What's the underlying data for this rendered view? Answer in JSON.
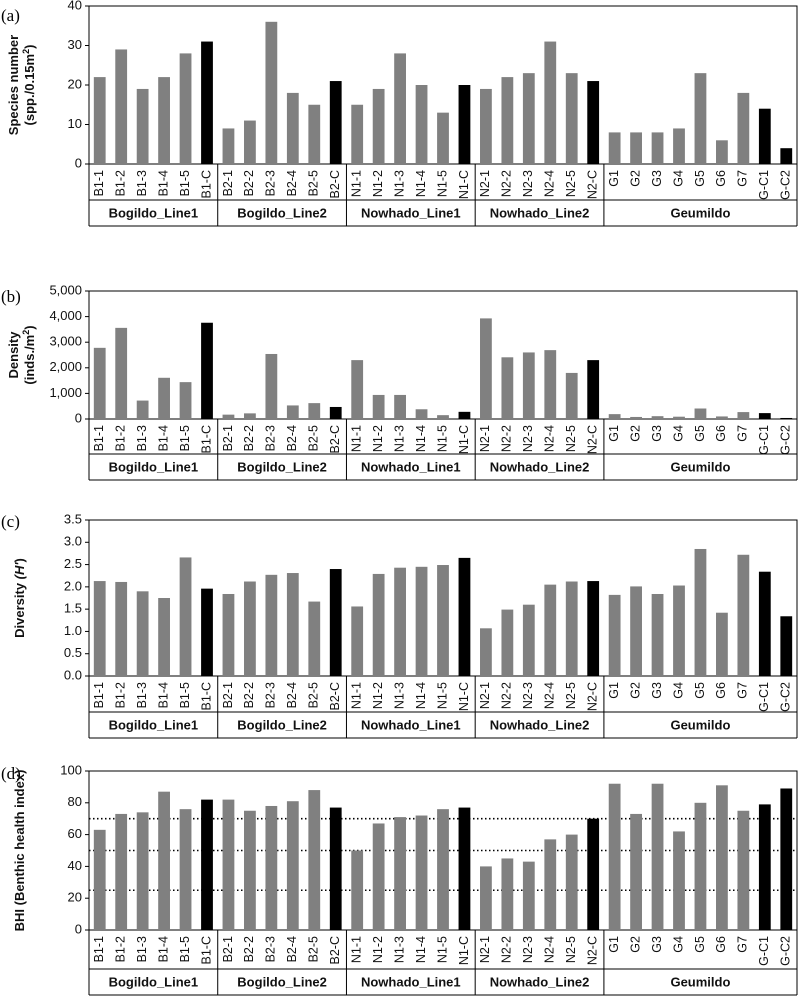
{
  "colors": {
    "site": "#808080",
    "control": "#000000",
    "axis": "#000000"
  },
  "chart_data": [
    {
      "type": "bar",
      "panel_label": "(a)",
      "ylabel": "Species number",
      "ylabel_unit_prefix": "(spp./0.15m",
      "ylabel_unit_sup": "2",
      "ylabel_unit_suffix": ")",
      "ylim": [
        0,
        40
      ],
      "yticks": [
        {
          "v": 0,
          "t": "0"
        },
        {
          "v": 10,
          "t": "10"
        },
        {
          "v": 20,
          "t": "20"
        },
        {
          "v": 30,
          "t": "30"
        },
        {
          "v": 40,
          "t": "40"
        }
      ],
      "categories": [
        "B1-1",
        "B1-2",
        "B1-3",
        "B1-4",
        "B1-5",
        "B1-C",
        "B2-1",
        "B2-2",
        "B2-3",
        "B2-4",
        "B2-5",
        "B2-C",
        "N1-1",
        "N1-2",
        "N1-3",
        "N1-4",
        "N1-5",
        "N1-C",
        "N2-1",
        "N2-2",
        "N2-3",
        "N2-4",
        "N2-5",
        "N2-C",
        "G1",
        "G2",
        "G3",
        "G4",
        "G5",
        "G6",
        "G7",
        "G-C1",
        "G-C2"
      ],
      "values": [
        22,
        29,
        19,
        22,
        28,
        31,
        9,
        11,
        36,
        18,
        15,
        21,
        15,
        19,
        28,
        20,
        13,
        20,
        19,
        22,
        23,
        31,
        23,
        21,
        8,
        8,
        8,
        9,
        23,
        6,
        18,
        14,
        4
      ],
      "groups": [
        {
          "name": "Bogildo_Line1",
          "n": 6
        },
        {
          "name": "Bogildo_Line2",
          "n": 6
        },
        {
          "name": "Nowhado_Line1",
          "n": 6
        },
        {
          "name": "Nowhado_Line2",
          "n": 6
        },
        {
          "name": "Geumildo",
          "n": 9
        }
      ],
      "reference_lines": []
    },
    {
      "type": "bar",
      "panel_label": "(b)",
      "ylabel": "Density",
      "ylabel_unit_prefix": "(inds./m",
      "ylabel_unit_sup": "2",
      "ylabel_unit_suffix": ")",
      "ylim": [
        0,
        5000
      ],
      "yticks": [
        {
          "v": 0,
          "t": "0"
        },
        {
          "v": 1000,
          "t": "1,000"
        },
        {
          "v": 2000,
          "t": "2,000"
        },
        {
          "v": 3000,
          "t": "3,000"
        },
        {
          "v": 4000,
          "t": "4,000"
        },
        {
          "v": 5000,
          "t": "5,000"
        }
      ],
      "categories": [
        "B1-1",
        "B1-2",
        "B1-3",
        "B1-4",
        "B1-5",
        "B1-C",
        "B2-1",
        "B2-2",
        "B2-3",
        "B2-4",
        "B2-5",
        "B2-C",
        "N1-1",
        "N1-2",
        "N1-3",
        "N1-4",
        "N1-5",
        "N1-C",
        "N2-1",
        "N2-2",
        "N2-3",
        "N2-4",
        "N2-5",
        "N2-C",
        "G1",
        "G2",
        "G3",
        "G4",
        "G5",
        "G6",
        "G7",
        "G-C1",
        "G-C2"
      ],
      "values": [
        2780,
        3560,
        720,
        1610,
        1440,
        3760,
        170,
        220,
        2540,
        530,
        620,
        470,
        2300,
        940,
        940,
        380,
        150,
        280,
        3930,
        2410,
        2600,
        2690,
        1800,
        2300,
        190,
        80,
        110,
        90,
        410,
        100,
        270,
        230,
        40
      ],
      "groups": [
        {
          "name": "Bogildo_Line1",
          "n": 6
        },
        {
          "name": "Bogildo_Line2",
          "n": 6
        },
        {
          "name": "Nowhado_Line1",
          "n": 6
        },
        {
          "name": "Nowhado_Line2",
          "n": 6
        },
        {
          "name": "Geumildo",
          "n": 9
        }
      ],
      "reference_lines": []
    },
    {
      "type": "bar",
      "panel_label": "(c)",
      "ylabel": "Diversity",
      "ylabel_unit_prefix": "(H'",
      "ylabel_unit_sup": "",
      "ylabel_unit_suffix": ")",
      "ylim": [
        0,
        3.5
      ],
      "yticks": [
        {
          "v": 0,
          "t": "0.0"
        },
        {
          "v": 0.5,
          "t": "0.5"
        },
        {
          "v": 1,
          "t": "1.0"
        },
        {
          "v": 1.5,
          "t": "1.5"
        },
        {
          "v": 2,
          "t": "2.0"
        },
        {
          "v": 2.5,
          "t": "2.5"
        },
        {
          "v": 3,
          "t": "3.0"
        },
        {
          "v": 3.5,
          "t": "3.5"
        }
      ],
      "categories": [
        "B1-1",
        "B1-2",
        "B1-3",
        "B1-4",
        "B1-5",
        "B1-C",
        "B2-1",
        "B2-2",
        "B2-3",
        "B2-4",
        "B2-5",
        "B2-C",
        "N1-1",
        "N1-2",
        "N1-3",
        "N1-4",
        "N1-5",
        "N1-C",
        "N2-1",
        "N2-2",
        "N2-3",
        "N2-4",
        "N2-5",
        "N2-C",
        "G1",
        "G2",
        "G3",
        "G4",
        "G5",
        "G6",
        "G7",
        "G-C1",
        "G-C2"
      ],
      "values": [
        2.13,
        2.11,
        1.9,
        1.75,
        2.66,
        1.96,
        1.84,
        2.12,
        2.27,
        2.31,
        1.67,
        2.4,
        1.56,
        2.29,
        2.43,
        2.45,
        2.49,
        2.65,
        1.07,
        1.49,
        1.6,
        2.05,
        2.12,
        2.13,
        1.82,
        2.01,
        1.84,
        2.03,
        2.85,
        1.42,
        2.72,
        2.34,
        1.34
      ],
      "groups": [
        {
          "name": "Bogildo_Line1",
          "n": 6
        },
        {
          "name": "Bogildo_Line2",
          "n": 6
        },
        {
          "name": "Nowhado_Line1",
          "n": 6
        },
        {
          "name": "Nowhado_Line2",
          "n": 6
        },
        {
          "name": "Geumildo",
          "n": 9
        }
      ],
      "reference_lines": []
    },
    {
      "type": "bar",
      "panel_label": "(d)",
      "ylabel": "BHI (Benthic health index)",
      "ylabel_unit_prefix": "",
      "ylabel_unit_sup": "",
      "ylabel_unit_suffix": "",
      "ylim": [
        0,
        100
      ],
      "yticks": [
        {
          "v": 0,
          "t": "0"
        },
        {
          "v": 20,
          "t": "20"
        },
        {
          "v": 40,
          "t": "40"
        },
        {
          "v": 60,
          "t": "60"
        },
        {
          "v": 80,
          "t": "80"
        },
        {
          "v": 100,
          "t": "100"
        }
      ],
      "categories": [
        "B1-1",
        "B1-2",
        "B1-3",
        "B1-4",
        "B1-5",
        "B1-C",
        "B2-1",
        "B2-2",
        "B2-3",
        "B2-4",
        "B2-5",
        "B2-C",
        "N1-1",
        "N1-2",
        "N1-3",
        "N1-4",
        "N1-5",
        "N1-C",
        "N2-1",
        "N2-2",
        "N2-3",
        "N2-4",
        "N2-5",
        "N2-C",
        "G1",
        "G2",
        "G3",
        "G4",
        "G5",
        "G6",
        "G7",
        "G-C1",
        "G-C2"
      ],
      "values": [
        63,
        73,
        74,
        87,
        76,
        82,
        82,
        75,
        78,
        81,
        88,
        77,
        50,
        67,
        71,
        72,
        76,
        77,
        40,
        45,
        43,
        57,
        60,
        70,
        92,
        73,
        92,
        62,
        80,
        91,
        75,
        79,
        89
      ],
      "groups": [
        {
          "name": "Bogildo_Line1",
          "n": 6
        },
        {
          "name": "Bogildo_Line2",
          "n": 6
        },
        {
          "name": "Nowhado_Line1",
          "n": 6
        },
        {
          "name": "Nowhado_Line2",
          "n": 6
        },
        {
          "name": "Geumildo",
          "n": 9
        }
      ],
      "reference_lines": [
        25,
        50,
        70
      ]
    }
  ]
}
